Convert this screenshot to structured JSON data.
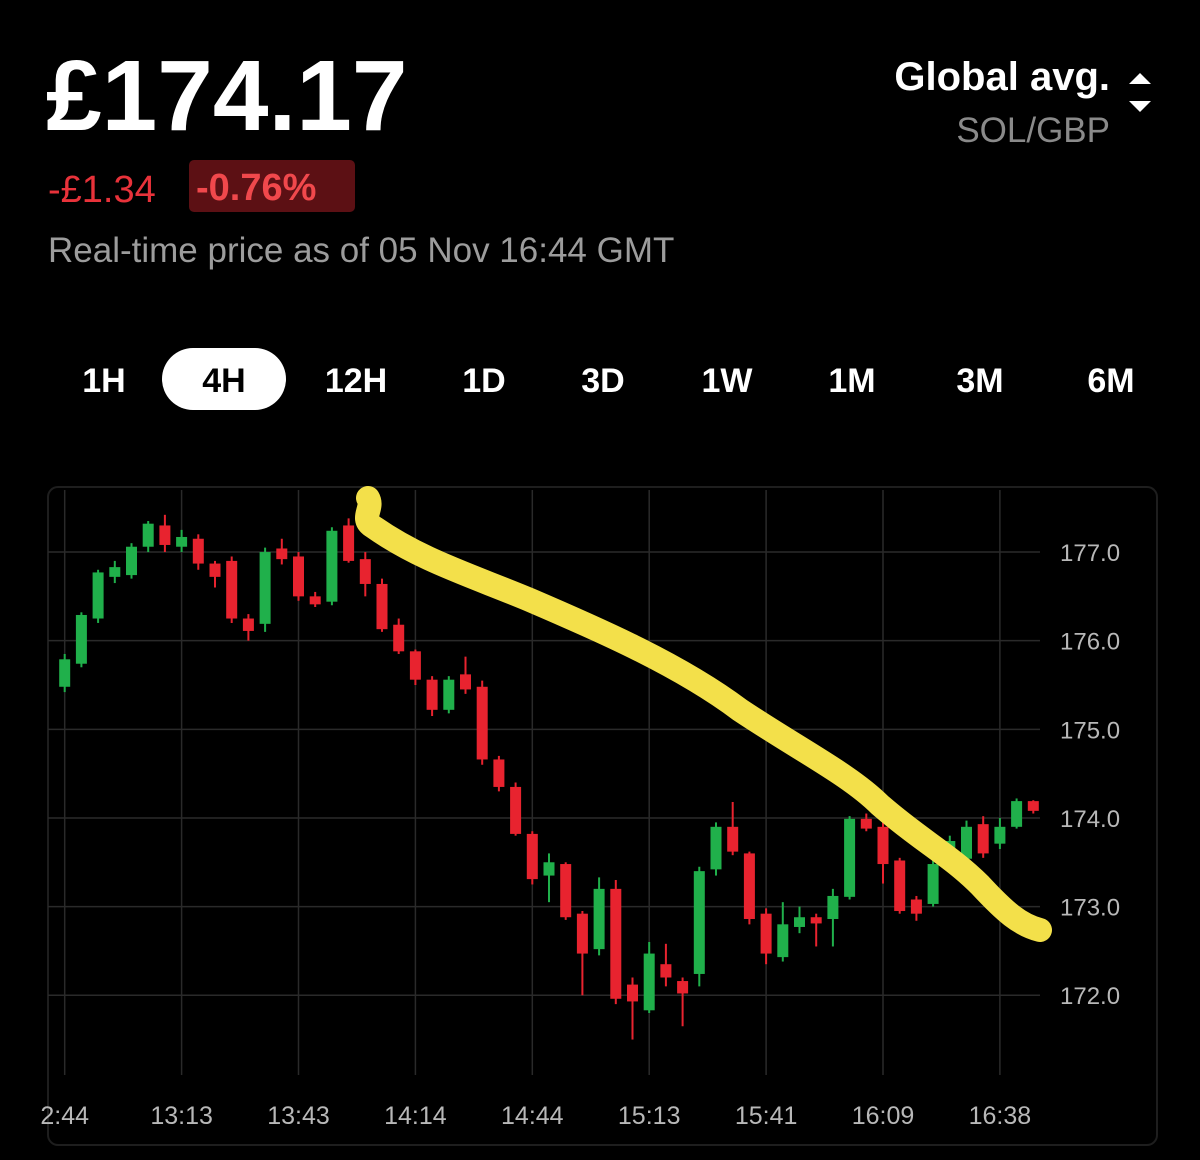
{
  "header": {
    "price": "£174.17",
    "change": "-£1.34",
    "change_pct": "-0.76%",
    "timestamp": "Real-time price as of 05 Nov 16:44 GMT",
    "source": "Global avg.",
    "pair": "SOL/GBP"
  },
  "tabs": {
    "items": [
      "1H",
      "4H",
      "12H",
      "1D",
      "3D",
      "1W",
      "1M",
      "3M",
      "6M"
    ],
    "selected": 1
  },
  "chart_data": {
    "type": "candlestick",
    "categories": [
      "2:44",
      null,
      null,
      null,
      null,
      null,
      null,
      "13:13",
      null,
      null,
      null,
      null,
      null,
      null,
      "13:43",
      null,
      null,
      null,
      null,
      null,
      null,
      "14:14",
      null,
      null,
      null,
      null,
      null,
      null,
      "14:44",
      null,
      null,
      null,
      null,
      null,
      null,
      "15:13",
      null,
      null,
      null,
      null,
      null,
      null,
      "15:41",
      null,
      null,
      null,
      null,
      null,
      null,
      "16:09",
      null,
      null,
      null,
      null,
      null,
      null,
      "16:38",
      null,
      null
    ],
    "open": [
      175.48,
      175.74,
      176.25,
      176.72,
      176.74,
      177.06,
      177.3,
      177.06,
      177.15,
      176.87,
      176.9,
      176.25,
      176.19,
      177.04,
      176.95,
      176.5,
      176.44,
      177.3,
      176.92,
      176.64,
      176.18,
      175.88,
      175.56,
      175.22,
      175.62,
      175.48,
      174.66,
      174.35,
      173.82,
      173.35,
      173.48,
      172.92,
      172.52,
      173.2,
      172.12,
      171.83,
      172.35,
      172.16,
      172.24,
      173.42,
      173.9,
      173.6,
      172.92,
      172.43,
      172.77,
      172.88,
      172.86,
      173.11,
      173.99,
      173.9,
      173.52,
      173.08,
      173.03,
      173.45,
      173.54,
      173.93,
      173.71,
      173.9,
      174.19
    ],
    "high": [
      175.85,
      176.32,
      176.8,
      176.9,
      177.1,
      177.35,
      177.42,
      177.25,
      177.2,
      176.9,
      176.95,
      176.3,
      177.05,
      177.15,
      177.0,
      176.55,
      177.28,
      177.38,
      177.0,
      176.7,
      176.25,
      175.9,
      175.6,
      175.6,
      175.82,
      175.55,
      174.7,
      174.4,
      173.85,
      173.6,
      173.5,
      172.95,
      173.33,
      173.3,
      172.2,
      172.6,
      172.58,
      172.2,
      173.45,
      173.95,
      174.18,
      173.62,
      172.98,
      173.05,
      173.0,
      172.92,
      173.2,
      174.02,
      174.05,
      173.95,
      173.55,
      173.12,
      173.52,
      173.8,
      173.97,
      174.02,
      174.0,
      174.22,
      174.2
    ],
    "low": [
      175.42,
      175.7,
      176.2,
      176.65,
      176.7,
      177.0,
      177.0,
      177.0,
      176.8,
      176.6,
      176.2,
      176.0,
      176.1,
      176.86,
      176.45,
      176.38,
      176.4,
      176.88,
      176.5,
      176.1,
      175.85,
      175.5,
      175.15,
      175.18,
      175.4,
      174.6,
      174.3,
      173.8,
      173.25,
      173.05,
      172.85,
      172.0,
      172.45,
      171.9,
      171.5,
      171.8,
      172.1,
      171.65,
      172.1,
      173.35,
      173.58,
      172.8,
      172.35,
      172.38,
      172.7,
      172.55,
      172.55,
      173.08,
      173.85,
      173.26,
      172.92,
      172.84,
      173.0,
      173.4,
      173.45,
      173.55,
      173.65,
      173.88,
      174.05
    ],
    "close": [
      175.79,
      176.29,
      176.77,
      176.83,
      177.06,
      177.32,
      177.08,
      177.17,
      176.87,
      176.72,
      176.25,
      176.11,
      177.0,
      176.92,
      176.5,
      176.41,
      177.24,
      176.9,
      176.64,
      176.13,
      175.88,
      175.56,
      175.22,
      175.56,
      175.45,
      174.66,
      174.35,
      173.82,
      173.31,
      173.5,
      172.88,
      172.47,
      173.2,
      171.96,
      171.93,
      172.47,
      172.2,
      172.02,
      173.4,
      173.9,
      173.62,
      172.86,
      172.47,
      172.8,
      172.88,
      172.81,
      173.12,
      173.99,
      173.88,
      173.48,
      172.95,
      172.92,
      173.48,
      173.74,
      173.9,
      173.6,
      173.9,
      174.19,
      174.08
    ],
    "up_color": "#20b04b",
    "down_color": "#e8232f",
    "ylim": [
      171.1,
      177.7
    ],
    "yticks": [
      {
        "value": 172,
        "label": "172.0"
      },
      {
        "value": 173,
        "label": "173.0"
      },
      {
        "value": 174,
        "label": "174.0"
      },
      {
        "value": 175,
        "label": "175.0"
      },
      {
        "value": 176,
        "label": "176.0"
      },
      {
        "value": 177,
        "label": "177.0"
      }
    ],
    "grid": true
  }
}
